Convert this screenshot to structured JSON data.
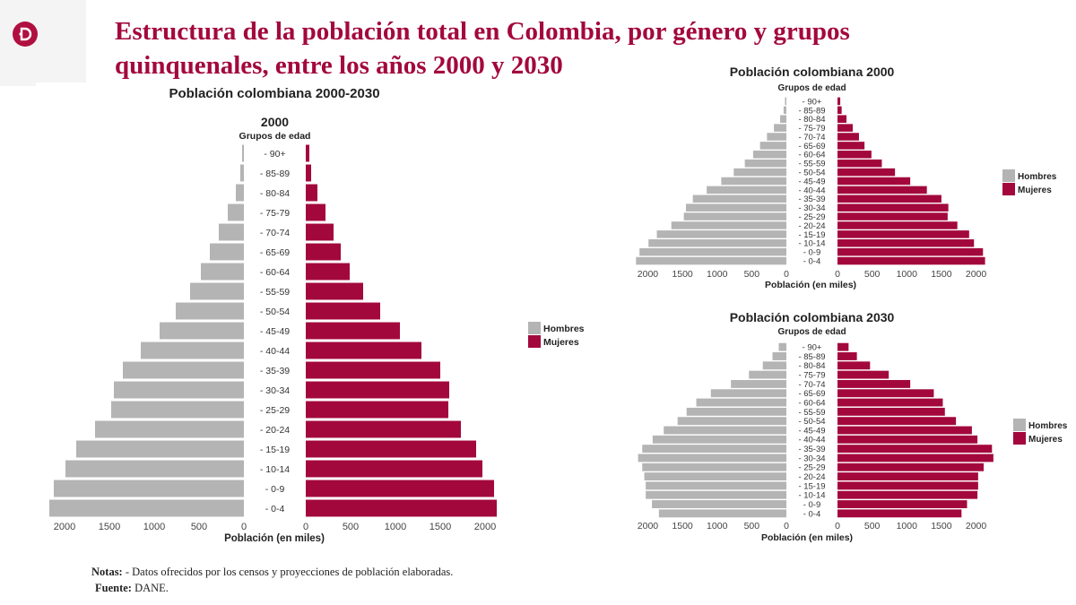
{
  "slide": {
    "title_line1": "Estructura de la población total en Colombia, por género y grupos",
    "title_line2": "quinquenales, entre los años 2000 y 2030",
    "notes_label": "Notas:",
    "notes_text": "- Datos ofrecidos por los censos y proyecciones de población elaboradas.",
    "source_label": "Fuente:",
    "source_text": "DANE.",
    "colors": {
      "title": "#a3083d",
      "hombres": "#b4b4b4",
      "mujeres": "#a3083d"
    }
  },
  "chart_data": [
    {
      "type": "bar",
      "orientation": "horizontal-pyramid",
      "suptitle": "Población colombiana 2000-2030",
      "title": "2000",
      "ylabel": "Grupos de edad",
      "xlabel": "Población (en miles)",
      "categories": [
        "90+",
        "85-89",
        "80-84",
        "75-79",
        "70-74",
        "65-69",
        "60-64",
        "55-59",
        "50-54",
        "45-49",
        "40-44",
        "35-39",
        "30-34",
        "25-29",
        "20-24",
        "15-19",
        "10-14",
        "0-9",
        "0-4"
      ],
      "series": [
        {
          "name": "Hombres",
          "color": "#b4b4b4",
          "values": [
            20,
            40,
            90,
            180,
            280,
            380,
            480,
            600,
            760,
            940,
            1150,
            1350,
            1450,
            1480,
            1660,
            1870,
            1990,
            2120,
            2170
          ]
        },
        {
          "name": "Mujeres",
          "color": "#a3083d",
          "values": [
            40,
            60,
            130,
            220,
            310,
            390,
            490,
            640,
            830,
            1050,
            1290,
            1500,
            1600,
            1590,
            1730,
            1900,
            1970,
            2100,
            2130
          ]
        }
      ],
      "xticks_left": [
        "2000",
        "1500",
        "1000",
        "500",
        "0"
      ],
      "xticks_right": [
        "0",
        "500",
        "1000",
        "1500",
        "2000"
      ],
      "xlim": [
        0,
        2200
      ],
      "legend": [
        "Hombres",
        "Mujeres"
      ],
      "legend_position": "right"
    },
    {
      "type": "bar",
      "orientation": "horizontal-pyramid",
      "title": "Población colombiana 2000",
      "ylabel": "Grupos de edad",
      "xlabel": "Población (en miles)",
      "categories": [
        "90+",
        "85-89",
        "80-84",
        "75-79",
        "70-74",
        "65-69",
        "60-64",
        "55-59",
        "50-54",
        "45-49",
        "40-44",
        "35-39",
        "30-34",
        "25-29",
        "20-24",
        "15-19",
        "10-14",
        "0-9",
        "0-4"
      ],
      "series": [
        {
          "name": "Hombres",
          "color": "#b4b4b4",
          "values": [
            20,
            40,
            90,
            180,
            280,
            380,
            480,
            600,
            760,
            940,
            1150,
            1350,
            1450,
            1480,
            1660,
            1870,
            1990,
            2120,
            2170
          ]
        },
        {
          "name": "Mujeres",
          "color": "#a3083d",
          "values": [
            40,
            60,
            130,
            220,
            310,
            390,
            490,
            640,
            830,
            1050,
            1290,
            1500,
            1600,
            1590,
            1730,
            1900,
            1970,
            2100,
            2130
          ]
        }
      ],
      "xticks_left": [
        "2000",
        "1500",
        "1000",
        "500",
        "0"
      ],
      "xticks_right": [
        "0",
        "500",
        "1000",
        "1500",
        "2000"
      ],
      "xlim": [
        0,
        2200
      ],
      "legend": [
        "Hombres",
        "Mujeres"
      ],
      "legend_position": "right"
    },
    {
      "type": "bar",
      "orientation": "horizontal-pyramid",
      "title": "Población colombiana 2030",
      "ylabel": "Grupos de edad",
      "xlabel": "Población (en miles)",
      "categories": [
        "90+",
        "85-89",
        "80-84",
        "75-79",
        "70-74",
        "65-69",
        "60-64",
        "55-59",
        "50-54",
        "45-49",
        "40-44",
        "35-39",
        "30-34",
        "25-29",
        "20-24",
        "15-19",
        "10-14",
        "0-9",
        "0-4"
      ],
      "series": [
        {
          "name": "Hombres",
          "color": "#b4b4b4",
          "values": [
            110,
            200,
            340,
            540,
            800,
            1090,
            1300,
            1440,
            1570,
            1770,
            1930,
            2080,
            2140,
            2080,
            2050,
            2030,
            2030,
            1940,
            1840
          ]
        },
        {
          "name": "Mujeres",
          "color": "#a3083d",
          "values": [
            160,
            280,
            470,
            740,
            1050,
            1390,
            1520,
            1550,
            1710,
            1940,
            2020,
            2230,
            2250,
            2110,
            2030,
            2030,
            2020,
            1870,
            1790
          ]
        }
      ],
      "xticks_left": [
        "2000",
        "1500",
        "1000",
        "500",
        "0"
      ],
      "xticks_right": [
        "0",
        "500",
        "1000",
        "1500",
        "2000"
      ],
      "xlim": [
        0,
        2200
      ],
      "legend": [
        "Hombres",
        "Mujeres"
      ],
      "legend_position": "right"
    }
  ]
}
